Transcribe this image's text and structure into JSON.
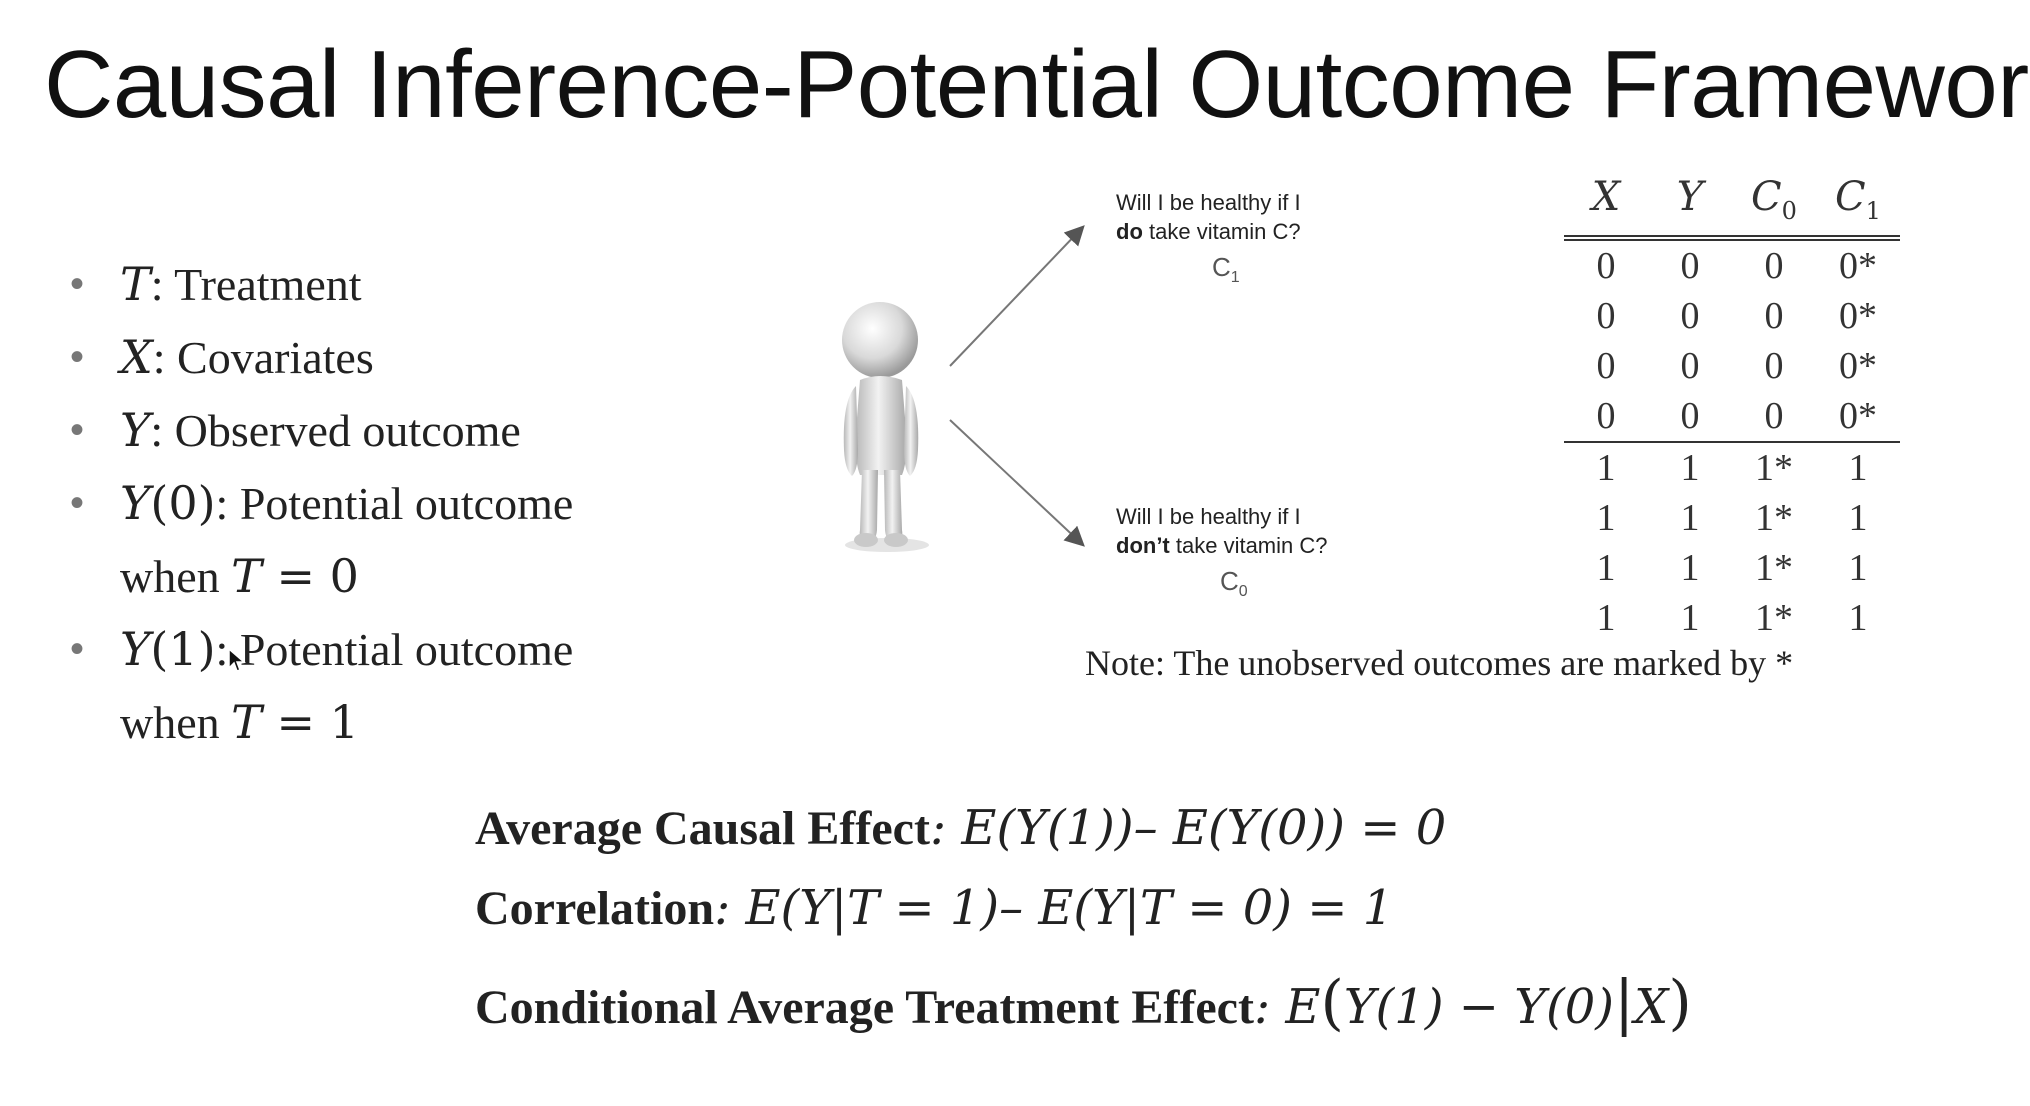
{
  "title": "Causal Inference-Potential Outcome Framework",
  "bullets": [
    {
      "sym": "T",
      "text": ": Treatment"
    },
    {
      "sym": "X",
      "text": ": Covariates"
    },
    {
      "sym": "Y",
      "text": ": Observed outcome"
    },
    {
      "sym": "Y",
      "arg": "(0)",
      "text": ": Potential outcome",
      "cont_word": "when ",
      "cont_sym": "T",
      "cont_val": " = 0"
    },
    {
      "sym": "Y",
      "arg": "(1)",
      "text": ": Potential outcome",
      "cont_word": "when ",
      "cont_sym": "T",
      "cont_val": " = 1"
    }
  ],
  "figure": {
    "question_do_1": "Will I be healthy if I",
    "question_do_bold": "do",
    "question_do_2": " take vitamin C?",
    "label_do": "C",
    "label_do_sub": "1",
    "question_dont_1": "Will I be healthy if I",
    "question_dont_bold": "don’t",
    "question_dont_2": " take vitamin C?",
    "label_dont": "C",
    "label_dont_sub": "0"
  },
  "table": {
    "headers": [
      {
        "base": "X",
        "sub": ""
      },
      {
        "base": "Y",
        "sub": ""
      },
      {
        "base": "C",
        "sub": "0"
      },
      {
        "base": "C",
        "sub": "1"
      }
    ],
    "rows": [
      [
        "0",
        "0",
        "0",
        "0*"
      ],
      [
        "0",
        "0",
        "0",
        "0*"
      ],
      [
        "0",
        "0",
        "0",
        "0*"
      ],
      [
        "0",
        "0",
        "0",
        "0*"
      ],
      [
        "1",
        "1",
        "1*",
        "1"
      ],
      [
        "1",
        "1",
        "1*",
        "1"
      ],
      [
        "1",
        "1",
        "1*",
        "1"
      ],
      [
        "1",
        "1",
        "1*",
        "1"
      ]
    ]
  },
  "note": "Note: The unobserved outcomes are marked by *",
  "formulas": {
    "ace_label": "Average Causal Effect",
    "ace_expr": ": E(Y(1))– E(Y(0)) = 0",
    "corr_label": "Correlation",
    "corr_expr": ": E(Y|T = 1)– E(Y|T = 0) = 1",
    "cate_label": "Conditional Average Treatment Effect",
    "cate_expr_start": ": E",
    "cate_expr_mid": "Y(1) − Y(0)",
    "cate_expr_bar": "|",
    "cate_expr_end": "X"
  }
}
